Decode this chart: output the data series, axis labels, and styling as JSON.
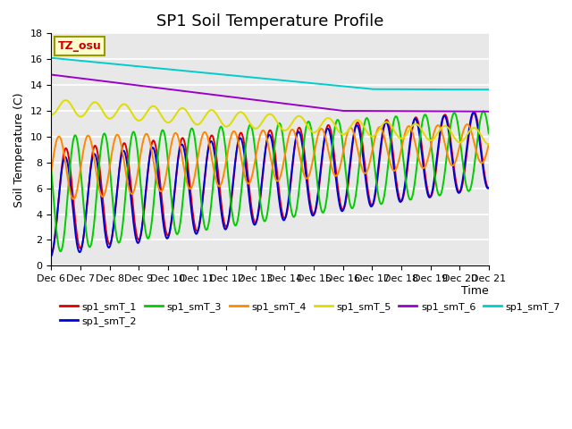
{
  "title": "SP1 Soil Temperature Profile",
  "xlabel": "Time",
  "ylabel": "Soil Temperature (C)",
  "ylim": [
    0,
    18
  ],
  "yticks": [
    0,
    2,
    4,
    6,
    8,
    10,
    12,
    14,
    16,
    18
  ],
  "xtick_labels": [
    "Dec 6",
    "Dec 7",
    "Dec 8",
    "Dec 9",
    "Dec 10",
    "Dec 11",
    "Dec 12",
    "Dec 13",
    "Dec 14",
    "Dec 15",
    "Dec 16",
    "Dec 17",
    "Dec 18",
    "Dec 19",
    "Dec 20",
    "Dec 21"
  ],
  "series_colors": {
    "sp1_smT_1": "#dd0000",
    "sp1_smT_2": "#0000dd",
    "sp1_smT_3": "#00cc00",
    "sp1_smT_4": "#ff8800",
    "sp1_smT_5": "#dddd00",
    "sp1_smT_6": "#9900cc",
    "sp1_smT_7": "#00cccc"
  },
  "legend_labels": [
    "sp1_smT_1",
    "sp1_smT_2",
    "sp1_smT_3",
    "sp1_smT_4",
    "sp1_smT_5",
    "sp1_smT_6",
    "sp1_smT_7"
  ],
  "annotation_text": "TZ_osu",
  "annotation_color": "#cc0000",
  "annotation_bg": "#ffffcc",
  "background_color": "#e8e8e8",
  "grid_color": "#ffffff",
  "title_fontsize": 13,
  "axis_label_fontsize": 9,
  "tick_fontsize": 8
}
